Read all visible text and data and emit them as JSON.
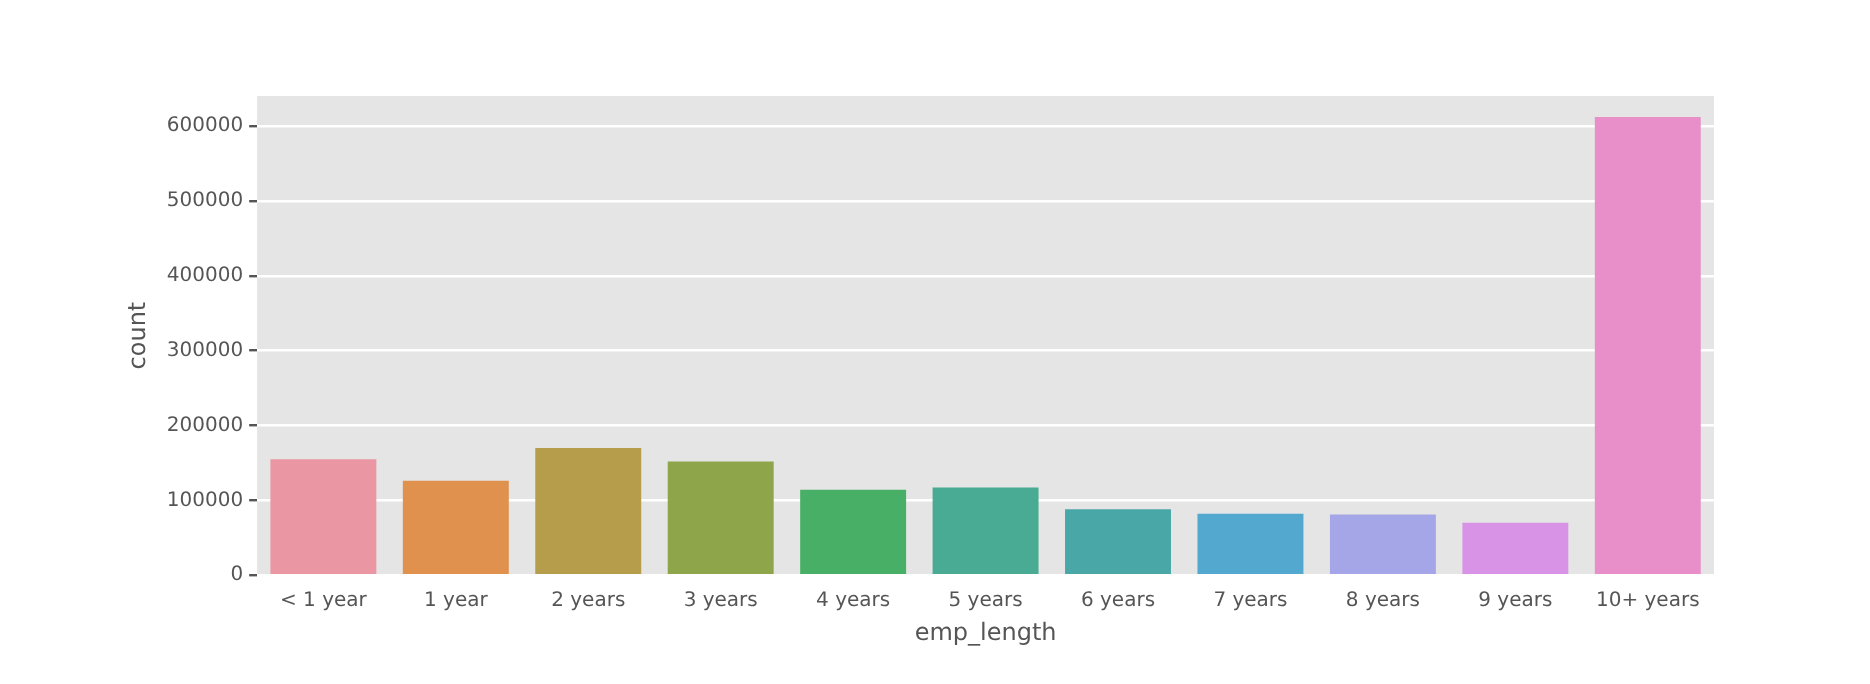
{
  "chart_data": {
    "type": "bar",
    "xlabel": "emp_length",
    "ylabel": "count",
    "categories": [
      "< 1 year",
      "1 year",
      "2 years",
      "3 years",
      "4 years",
      "5 years",
      "6 years",
      "7 years",
      "8 years",
      "9 years",
      "10+ years"
    ],
    "values": [
      155000,
      126000,
      170000,
      152000,
      114000,
      117000,
      88000,
      82000,
      81000,
      70000,
      612000
    ],
    "colors": [
      "#ea96a3",
      "#e0914d",
      "#b59d4b",
      "#8fa54a",
      "#48b066",
      "#4aab94",
      "#4aa7a8",
      "#52a8cf",
      "#a5a6e8",
      "#d993e6",
      "#e88fc9"
    ],
    "ylim": [
      0,
      640000
    ],
    "yticks": [
      0,
      100000,
      200000,
      300000,
      400000,
      500000,
      600000
    ],
    "grid": "y",
    "legend": false
  }
}
